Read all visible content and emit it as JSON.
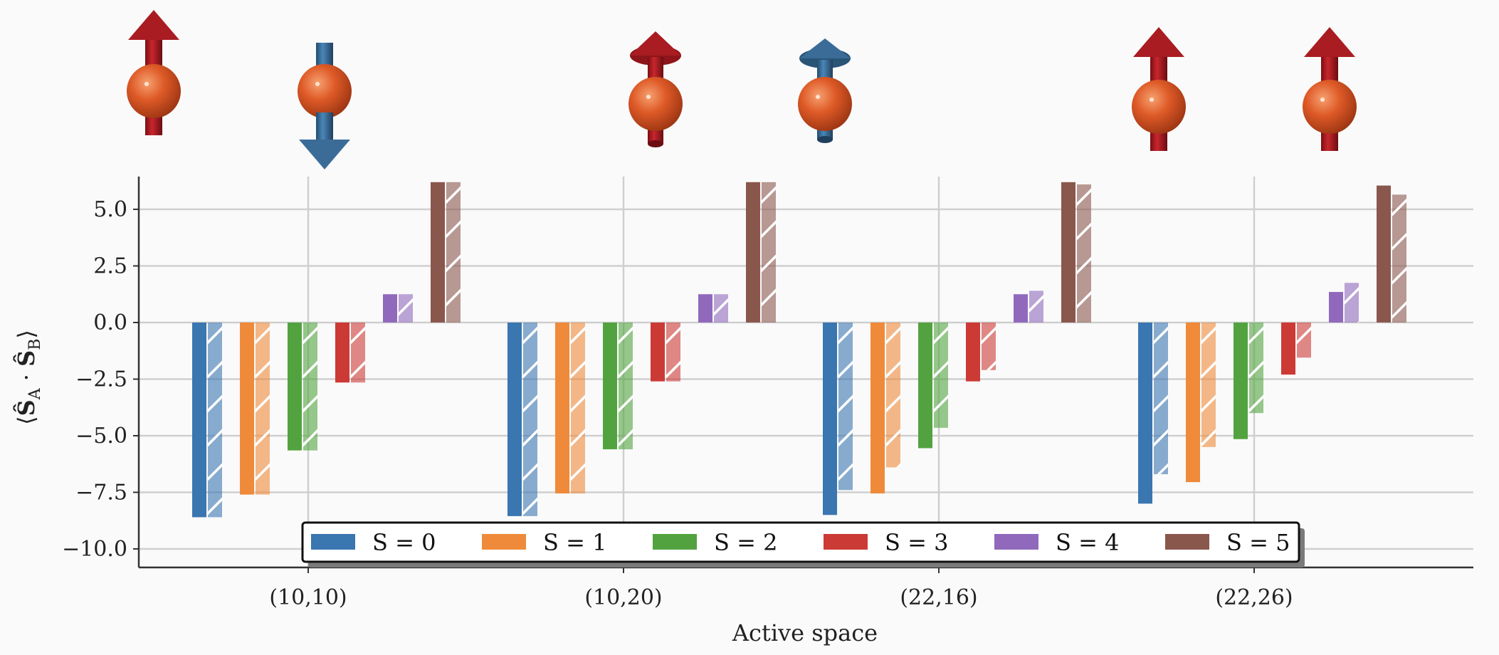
{
  "chart_data": {
    "type": "bar",
    "xlabel": "Active space",
    "ylabel": "⟨Ŝ_A · Ŝ_B⟩",
    "ylim": [
      -10.8,
      6.5
    ],
    "yticks": [
      -10.0,
      -7.5,
      -5.0,
      -2.5,
      0.0,
      2.5,
      5.0
    ],
    "ytick_labels": [
      "−10.0",
      "−7.5",
      "−5.0",
      "−2.5",
      "0.0",
      "2.5",
      "5.0"
    ],
    "categories": [
      "(10,10)",
      "(10,20)",
      "(22,16)",
      "(22,26)"
    ],
    "grid": true,
    "legend_position": "bottom-center",
    "series": [
      {
        "name": "S = 0",
        "color": "#3a76b0",
        "values": [
          -8.6,
          -8.55,
          -8.5,
          -8.0
        ],
        "hatched_values": [
          -8.6,
          -8.55,
          -7.4,
          -6.7
        ]
      },
      {
        "name": "S = 1",
        "color": "#ef8a3a",
        "values": [
          -7.6,
          -7.55,
          -7.55,
          -7.05
        ],
        "hatched_values": [
          -7.6,
          -7.55,
          -6.4,
          -5.5
        ]
      },
      {
        "name": "S = 2",
        "color": "#52a33f",
        "values": [
          -5.65,
          -5.6,
          -5.55,
          -5.15
        ],
        "hatched_values": [
          -5.65,
          -5.6,
          -4.65,
          -4.0
        ]
      },
      {
        "name": "S = 3",
        "color": "#cc3a35",
        "values": [
          -2.65,
          -2.6,
          -2.6,
          -2.3
        ],
        "hatched_values": [
          -2.65,
          -2.6,
          -2.1,
          -1.55
        ]
      },
      {
        "name": "S = 4",
        "color": "#9069bd",
        "values": [
          1.25,
          1.25,
          1.25,
          1.35
        ],
        "hatched_values": [
          1.25,
          1.25,
          1.4,
          1.75
        ]
      },
      {
        "name": "S = 5",
        "color": "#8a574d",
        "values": [
          6.2,
          6.2,
          6.2,
          6.05
        ],
        "hatched_values": [
          6.2,
          6.2,
          6.1,
          5.65
        ]
      }
    ]
  },
  "illustration": {
    "spin_up_color": "#a81c22",
    "spin_down_color": "#3a6c97",
    "atom_color": "#d9552a",
    "spins": [
      "up",
      "down",
      "up-tilted",
      "up-tilted-blue",
      "up",
      "up"
    ]
  }
}
